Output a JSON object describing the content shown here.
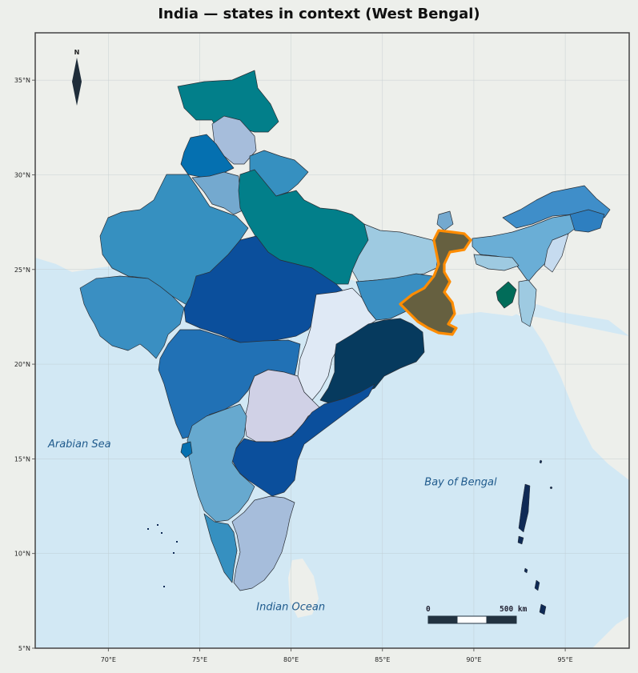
{
  "title": "India — states in context (West Bengal)",
  "highlight_state": "West Bengal",
  "highlight_color": "#ff8c00",
  "colors": {
    "background": "#edefeb",
    "sea": "#d2e8f4",
    "land_foreign": "#edefeb",
    "frame": "#444444"
  },
  "axes": {
    "lon_range": [
      66,
      98.5
    ],
    "lat_range": [
      5,
      37.5
    ],
    "x_ticks": [
      {
        "value": 70,
        "label": "70°E"
      },
      {
        "value": 75,
        "label": "75°E"
      },
      {
        "value": 80,
        "label": "80°E"
      },
      {
        "value": 85,
        "label": "85°E"
      },
      {
        "value": 90,
        "label": "90°E"
      },
      {
        "value": 95,
        "label": "95°E"
      }
    ],
    "y_ticks": [
      {
        "value": 5,
        "label": "5°N"
      },
      {
        "value": 10,
        "label": "10°N"
      },
      {
        "value": 15,
        "label": "15°N"
      },
      {
        "value": 20,
        "label": "20°N"
      },
      {
        "value": 25,
        "label": "25°N"
      },
      {
        "value": 30,
        "label": "30°N"
      },
      {
        "value": 35,
        "label": "35°N"
      }
    ],
    "grid": true
  },
  "north_arrow": {
    "label": "N",
    "icon": "north-arrow-icon"
  },
  "scale_bar": {
    "start_label": "0",
    "end_label": "500 km"
  },
  "water_labels": [
    {
      "name": "Arabian Sea",
      "lon": 66.7,
      "lat": 15.6
    },
    {
      "name": "Bay of Bengal",
      "lon": 87.3,
      "lat": 13.6
    },
    {
      "name": "Indian Ocean",
      "lon": 78.1,
      "lat": 7.0
    }
  ],
  "states": [
    {
      "name": "Ladakh / J&K",
      "color": "#027f8a"
    },
    {
      "name": "Himachal Pradesh",
      "color": "#a6bddb"
    },
    {
      "name": "Punjab",
      "color": "#0570b0"
    },
    {
      "name": "Haryana",
      "color": "#74a9cf"
    },
    {
      "name": "Uttarakhand",
      "color": "#3690c0"
    },
    {
      "name": "Rajasthan",
      "color": "#3690c0"
    },
    {
      "name": "Uttar Pradesh",
      "color": "#027f8a"
    },
    {
      "name": "Bihar",
      "color": "#9ecae1"
    },
    {
      "name": "Gujarat",
      "color": "#3a8fc2"
    },
    {
      "name": "Madhya Pradesh",
      "color": "#0b4f9c"
    },
    {
      "name": "Jharkhand",
      "color": "#3a8fc2"
    },
    {
      "name": "West Bengal",
      "color": "#666040"
    },
    {
      "name": "Chhattisgarh",
      "color": "#dfe9f5"
    },
    {
      "name": "Odisha",
      "color": "#063a5e"
    },
    {
      "name": "Maharashtra",
      "color": "#2171b5"
    },
    {
      "name": "Telangana",
      "color": "#d0d1e6"
    },
    {
      "name": "Andhra Pradesh",
      "color": "#0b4f9c"
    },
    {
      "name": "Karnataka",
      "color": "#67a9cf"
    },
    {
      "name": "Tamil Nadu",
      "color": "#a6bddb"
    },
    {
      "name": "Kerala",
      "color": "#3690c0"
    },
    {
      "name": "Goa",
      "color": "#0570b0"
    },
    {
      "name": "Sikkim",
      "color": "#74a9cf"
    },
    {
      "name": "Arunachal Pradesh",
      "color": "#3f8ec9"
    },
    {
      "name": "Assam",
      "color": "#6aaed6"
    },
    {
      "name": "Meghalaya",
      "color": "#9ecae1"
    },
    {
      "name": "Nagaland",
      "color": "#2e7fc0"
    },
    {
      "name": "Manipur",
      "color": "#c6dbef"
    },
    {
      "name": "Mizoram",
      "color": "#9ecae1"
    },
    {
      "name": "Tripura",
      "color": "#016c59"
    },
    {
      "name": "Andaman and Nicobar",
      "color": "#0f2a55"
    }
  ]
}
